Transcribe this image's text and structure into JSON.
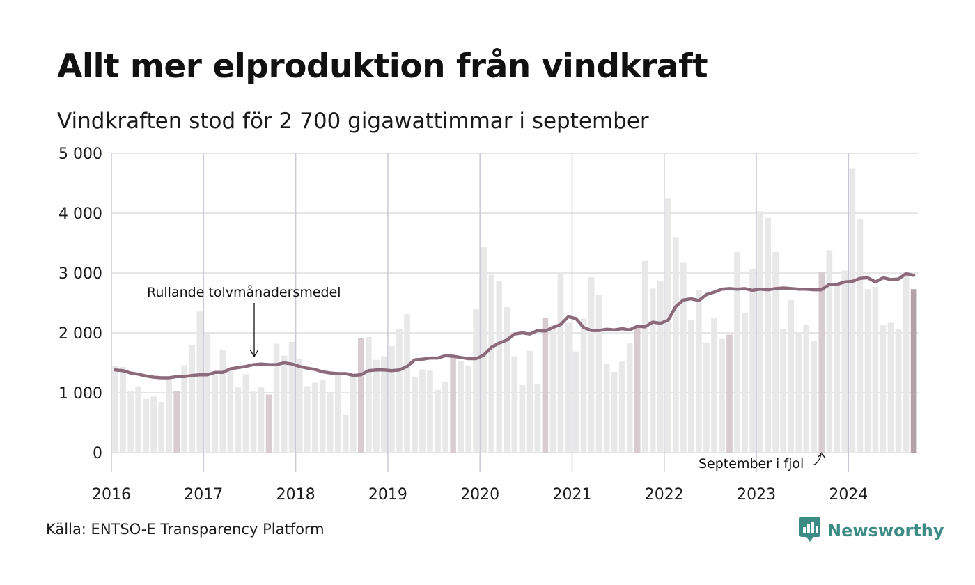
{
  "header": {
    "title": "Allt mer elproduktion från vindkraft",
    "subtitle": "Vindkraften stod för 2 700 gigawattimmar i september"
  },
  "footer": {
    "source": "Källa: ENTSO-E Transparency Platform",
    "brand": "Newsworthy",
    "brand_icon": "bar-chart-logo-icon"
  },
  "colors": {
    "bar": "#e8e8e8",
    "bar_september": "#d9ccd1",
    "bar_latest": "#b3a3a9",
    "line": "#8c6a79",
    "grid": "#dddddd",
    "year_grid": "#c8cad6",
    "brand": "#3c8c85"
  },
  "chart_data": {
    "type": "bar",
    "title": "Allt mer elproduktion från vindkraft",
    "subtitle": "Vindkraften stod för 2 700 gigawattimmar i september",
    "unit": "GWh",
    "start": "2016-01",
    "ylim": [
      0,
      5000
    ],
    "yticks": [
      0,
      1000,
      2000,
      3000,
      4000,
      5000
    ],
    "ytick_labels": [
      "0",
      "1 000",
      "2 000",
      "3 000",
      "4 000",
      "5 000"
    ],
    "xtick_labels": [
      "2016",
      "2017",
      "2018",
      "2019",
      "2020",
      "2021",
      "2022",
      "2023",
      "2024"
    ],
    "grid": true,
    "series": [
      {
        "kind": "bar",
        "values": [
          1450,
          1430,
          1030,
          1110,
          900,
          940,
          850,
          1210,
          1030,
          1460,
          1800,
          2360,
          2000,
          1300,
          1710,
          1380,
          1090,
          1310,
          1020,
          1090,
          970,
          1820,
          1620,
          1850,
          1560,
          1110,
          1170,
          1210,
          1010,
          1300,
          630,
          1300,
          1910,
          1930,
          1550,
          1610,
          1780,
          2070,
          2310,
          1270,
          1390,
          1370,
          1050,
          1180,
          1590,
          1530,
          1450,
          2400,
          3440,
          2970,
          2870,
          2430,
          1610,
          1130,
          1700,
          1140,
          2250,
          2130,
          3020,
          2170,
          1690,
          2240,
          2930,
          2640,
          1490,
          1350,
          1520,
          1830,
          2080,
          3200,
          2740,
          2860,
          4240,
          3590,
          3180,
          2220,
          2720,
          1830,
          2250,
          1900,
          1970,
          3350,
          2340,
          3070,
          4030,
          3920,
          3350,
          2060,
          2550,
          2010,
          2140,
          1860,
          3020,
          3380,
          2830,
          3040,
          4750,
          3900,
          2730,
          2770,
          2130,
          2170,
          2070,
          2990,
          2730
        ]
      },
      {
        "kind": "line",
        "name": "Rullande tolvmånadersmedel",
        "values": [
          1380,
          1370,
          1330,
          1310,
          1280,
          1260,
          1250,
          1250,
          1270,
          1270,
          1290,
          1300,
          1300,
          1340,
          1340,
          1400,
          1420,
          1440,
          1470,
          1480,
          1470,
          1470,
          1500,
          1480,
          1440,
          1410,
          1390,
          1350,
          1330,
          1320,
          1320,
          1290,
          1300,
          1370,
          1380,
          1380,
          1370,
          1380,
          1440,
          1550,
          1560,
          1580,
          1580,
          1620,
          1610,
          1590,
          1570,
          1570,
          1630,
          1760,
          1830,
          1880,
          1980,
          2000,
          1980,
          2040,
          2030,
          2090,
          2140,
          2270,
          2240,
          2090,
          2040,
          2040,
          2060,
          2050,
          2070,
          2050,
          2110,
          2100,
          2180,
          2160,
          2210,
          2440,
          2550,
          2570,
          2540,
          2640,
          2680,
          2730,
          2740,
          2730,
          2740,
          2710,
          2730,
          2720,
          2740,
          2750,
          2740,
          2730,
          2730,
          2720,
          2720,
          2810,
          2810,
          2850,
          2860,
          2910,
          2920,
          2850,
          2920,
          2890,
          2900,
          2990,
          2960
        ]
      }
    ],
    "annotations": [
      {
        "text": "Rullande tolvmånadersmedel",
        "target": "2017-07"
      },
      {
        "text": "September i fjol",
        "target": "2023-09"
      }
    ]
  }
}
